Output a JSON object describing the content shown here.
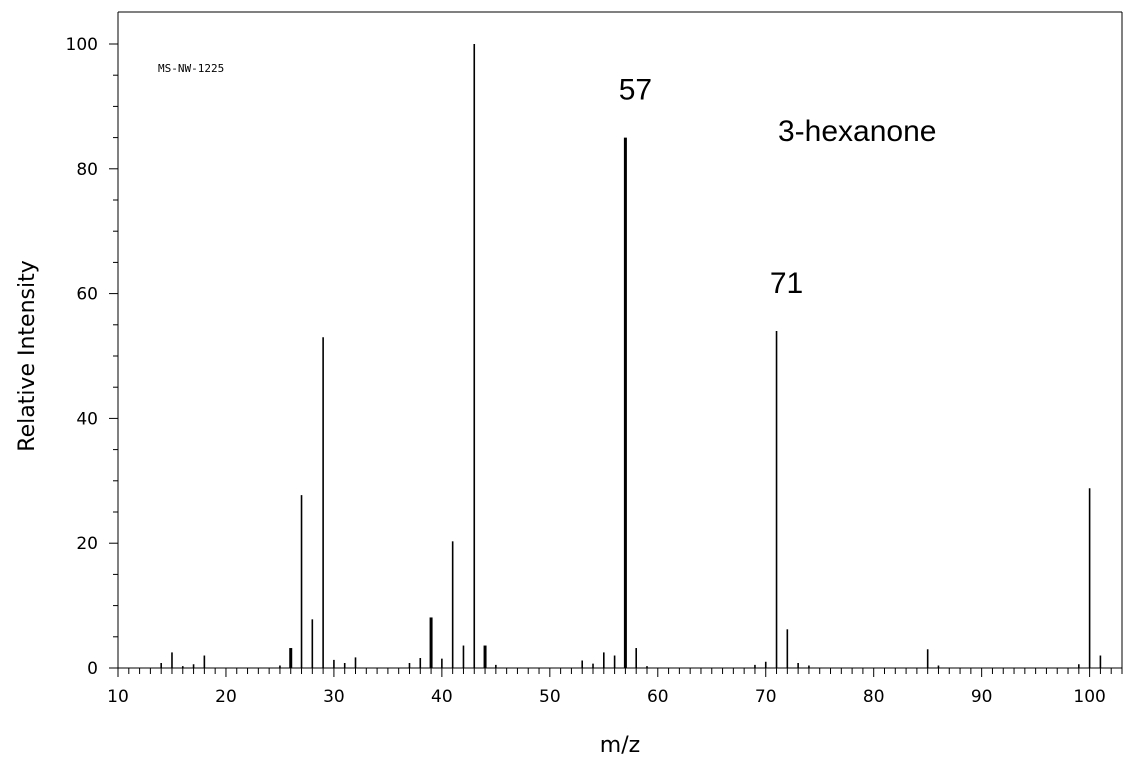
{
  "chart_data": {
    "type": "bar",
    "spectrum_id": "MS-NW-1225",
    "compound_label": "3-hexanone",
    "xlabel": "m/z",
    "ylabel": "Relative Intensity",
    "xlim": [
      10,
      103
    ],
    "ylim": [
      0,
      100
    ],
    "x_ticks": [
      10,
      20,
      30,
      40,
      50,
      60,
      70,
      80,
      90,
      100
    ],
    "y_ticks": [
      0,
      20,
      40,
      60,
      80,
      100
    ],
    "grid": false,
    "peak_annotations": [
      {
        "x": 57,
        "y": 85,
        "text": "57"
      },
      {
        "x": 71,
        "y": 54,
        "text": "71"
      }
    ],
    "peaks": [
      {
        "mz": 14,
        "intensity": 0.8
      },
      {
        "mz": 15,
        "intensity": 2.5
      },
      {
        "mz": 16,
        "intensity": 0.3
      },
      {
        "mz": 17,
        "intensity": 0.6
      },
      {
        "mz": 18,
        "intensity": 2.0
      },
      {
        "mz": 25,
        "intensity": 0.4
      },
      {
        "mz": 26,
        "intensity": 3.2,
        "bold": true
      },
      {
        "mz": 27,
        "intensity": 27.7
      },
      {
        "mz": 28,
        "intensity": 7.8
      },
      {
        "mz": 29,
        "intensity": 53.0
      },
      {
        "mz": 30,
        "intensity": 1.3
      },
      {
        "mz": 31,
        "intensity": 0.8
      },
      {
        "mz": 32,
        "intensity": 1.7
      },
      {
        "mz": 37,
        "intensity": 0.8
      },
      {
        "mz": 38,
        "intensity": 1.6
      },
      {
        "mz": 39,
        "intensity": 8.1,
        "bold": true
      },
      {
        "mz": 40,
        "intensity": 1.5
      },
      {
        "mz": 41,
        "intensity": 20.3
      },
      {
        "mz": 42,
        "intensity": 3.6
      },
      {
        "mz": 43,
        "intensity": 100
      },
      {
        "mz": 44,
        "intensity": 3.6,
        "bold": true
      },
      {
        "mz": 45,
        "intensity": 0.5
      },
      {
        "mz": 53,
        "intensity": 1.2
      },
      {
        "mz": 54,
        "intensity": 0.7
      },
      {
        "mz": 55,
        "intensity": 2.5
      },
      {
        "mz": 56,
        "intensity": 2.0
      },
      {
        "mz": 57,
        "intensity": 85.0,
        "bold": true
      },
      {
        "mz": 58,
        "intensity": 3.2
      },
      {
        "mz": 59,
        "intensity": 0.3
      },
      {
        "mz": 69,
        "intensity": 0.5
      },
      {
        "mz": 70,
        "intensity": 1.0
      },
      {
        "mz": 71,
        "intensity": 54.0
      },
      {
        "mz": 72,
        "intensity": 6.2
      },
      {
        "mz": 73,
        "intensity": 0.8
      },
      {
        "mz": 74,
        "intensity": 0.4
      },
      {
        "mz": 85,
        "intensity": 3.0
      },
      {
        "mz": 86,
        "intensity": 0.4
      },
      {
        "mz": 99,
        "intensity": 0.6
      },
      {
        "mz": 100,
        "intensity": 28.8
      },
      {
        "mz": 101,
        "intensity": 2.0
      }
    ]
  }
}
